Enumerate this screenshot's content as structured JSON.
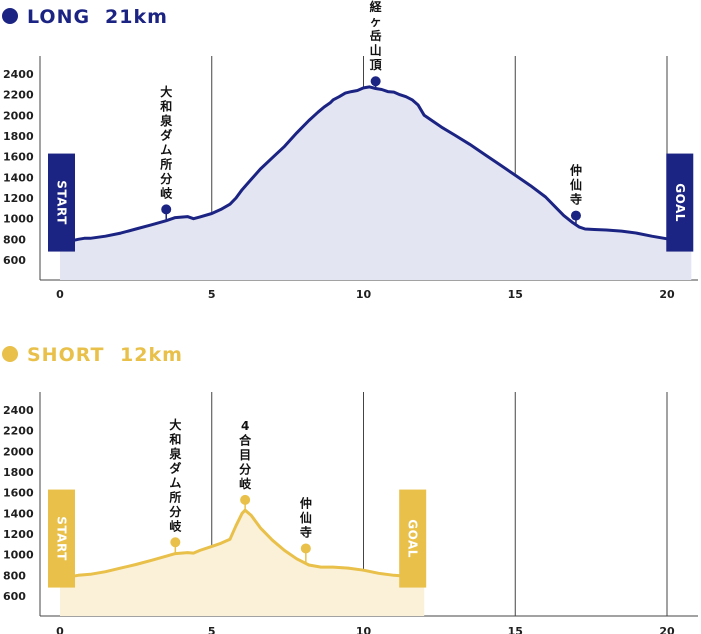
{
  "chart_data": [
    {
      "type": "area",
      "id": "long",
      "title": "LONG",
      "distance": "21km",
      "accent": "#1c2483",
      "fill": "#e4e5f2",
      "xlim": [
        0,
        21
      ],
      "ylim": [
        400,
        2500
      ],
      "x_ticks": [
        "0",
        "5",
        "10",
        "15",
        "20"
      ],
      "y_ticks": [
        "2400",
        "2200",
        "2000",
        "1800",
        "1600",
        "1400",
        "1200",
        "1000",
        "800",
        "600"
      ],
      "grid": "vertical",
      "x": [
        0,
        0.3,
        0.6,
        0.8,
        1.0,
        1.5,
        2.0,
        2.5,
        3.0,
        3.5,
        3.8,
        4.2,
        4.4,
        4.6,
        5.0,
        5.3,
        5.6,
        5.8,
        6.0,
        6.3,
        6.6,
        7.0,
        7.4,
        7.8,
        8.2,
        8.5,
        8.7,
        8.9,
        9.0,
        9.2,
        9.4,
        9.6,
        9.8,
        10.0,
        10.2,
        10.4,
        10.6,
        10.8,
        11.0,
        11.2,
        11.4,
        11.6,
        11.8,
        12.0,
        12.3,
        12.6,
        13.0,
        13.5,
        14.0,
        14.5,
        15.0,
        15.5,
        16.0,
        16.3,
        16.6,
        16.9,
        17.1,
        17.3,
        17.6,
        18.0,
        18.5,
        19.0,
        19.5,
        20.0,
        20.3,
        20.6,
        20.8
      ],
      "elevation": [
        775,
        780,
        800,
        810,
        810,
        830,
        860,
        900,
        940,
        980,
        1010,
        1020,
        1000,
        1015,
        1050,
        1090,
        1140,
        1200,
        1280,
        1380,
        1480,
        1590,
        1700,
        1830,
        1950,
        2030,
        2080,
        2120,
        2150,
        2180,
        2215,
        2230,
        2240,
        2265,
        2275,
        2260,
        2250,
        2230,
        2225,
        2200,
        2180,
        2150,
        2100,
        2000,
        1940,
        1880,
        1810,
        1720,
        1620,
        1520,
        1420,
        1320,
        1210,
        1120,
        1030,
        960,
        920,
        900,
        895,
        890,
        880,
        860,
        830,
        805,
        800,
        790,
        785
      ],
      "annotations": [
        {
          "label": "大和泉ダム所分岐",
          "x": 3.5,
          "y": 1090
        },
        {
          "label": "経ヶ岳山頂",
          "x": 10.4,
          "y": 2330
        },
        {
          "label": "仲仙寺",
          "x": 17.0,
          "y": 1030
        }
      ],
      "start_label": "START",
      "goal_label": "GOAL",
      "start_x": 0,
      "goal_x": 20.8
    },
    {
      "type": "area",
      "id": "short",
      "title": "SHORT",
      "distance": "12km",
      "accent": "#e8c04a",
      "fill": "#fbf0d8",
      "xlim": [
        0,
        21
      ],
      "ylim": [
        400,
        2500
      ],
      "x_ticks": [
        "0",
        "5",
        "10",
        "15",
        "20"
      ],
      "y_ticks": [
        "2400",
        "2200",
        "2000",
        "1800",
        "1600",
        "1400",
        "1200",
        "1000",
        "800",
        "600"
      ],
      "grid": "vertical",
      "x": [
        0,
        0.3,
        0.6,
        0.8,
        1.0,
        1.5,
        2.0,
        2.5,
        3.0,
        3.5,
        3.8,
        4.2,
        4.4,
        4.6,
        5.0,
        5.3,
        5.6,
        5.8,
        6.0,
        6.1,
        6.3,
        6.6,
        7.0,
        7.4,
        7.8,
        8.2,
        8.6,
        9.0,
        9.5,
        10.0,
        10.5,
        11.0,
        11.5,
        12.0
      ],
      "elevation": [
        775,
        785,
        800,
        805,
        810,
        835,
        870,
        905,
        945,
        985,
        1010,
        1020,
        1015,
        1040,
        1080,
        1110,
        1150,
        1280,
        1400,
        1430,
        1380,
        1260,
        1140,
        1040,
        960,
        900,
        880,
        880,
        870,
        850,
        820,
        800,
        790,
        775
      ],
      "annotations": [
        {
          "label": "大和泉ダム所分岐",
          "x": 3.8,
          "y": 1120
        },
        {
          "label": "4合目分岐",
          "x": 6.1,
          "y": 1530
        },
        {
          "label": "仲仙寺",
          "x": 8.1,
          "y": 1060
        }
      ],
      "start_label": "START",
      "goal_label": "GOAL",
      "start_x": 0,
      "goal_x": 12.0
    }
  ]
}
